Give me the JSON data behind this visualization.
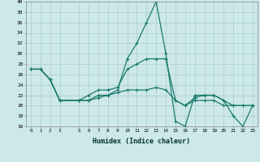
{
  "xlabel": "Humidex (Indice chaleur)",
  "x": [
    0,
    1,
    2,
    3,
    5,
    6,
    7,
    8,
    9,
    10,
    11,
    12,
    13,
    14,
    15,
    16,
    17,
    18,
    19,
    20,
    21,
    22,
    23
  ],
  "line1": [
    27,
    27,
    25,
    21,
    21,
    21,
    22,
    22,
    23,
    29,
    32,
    36,
    40,
    30,
    17,
    16,
    22,
    22,
    22,
    21,
    18,
    16,
    20
  ],
  "line2": [
    27,
    27,
    25,
    21,
    21,
    22,
    23,
    23,
    23.5,
    27,
    28,
    29,
    29,
    29,
    21,
    20,
    21.5,
    22,
    22,
    21,
    20,
    20,
    20
  ],
  "line3": [
    27,
    27,
    25,
    21,
    21,
    21,
    21.5,
    22,
    22.5,
    23,
    23,
    23,
    23.5,
    23,
    21,
    20,
    21,
    21,
    21,
    20,
    20,
    20,
    20
  ],
  "color": "#1a7a6e",
  "bg_color": "#cde8e8",
  "grid_color": "#aacccc",
  "ylim": [
    16,
    40
  ],
  "yticks": [
    16,
    18,
    20,
    22,
    24,
    26,
    28,
    30,
    32,
    34,
    36,
    38,
    40
  ],
  "xticks": [
    0,
    1,
    2,
    3,
    5,
    6,
    7,
    8,
    9,
    10,
    11,
    12,
    13,
    14,
    15,
    16,
    17,
    18,
    19,
    20,
    21,
    22,
    23
  ]
}
